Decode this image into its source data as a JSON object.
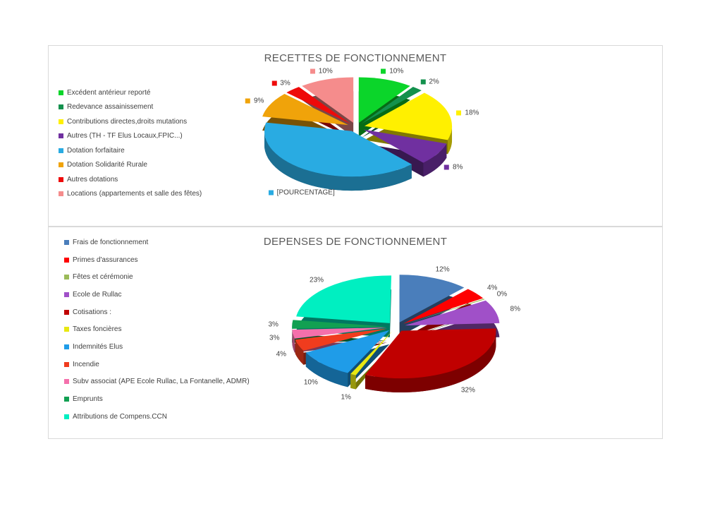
{
  "styles": {
    "background": "#FFFFFF",
    "panel_border": "#D9D9D9",
    "title_color": "#595959",
    "label_color": "#404040"
  },
  "chart_data": [
    {
      "type": "pie",
      "title": "RECETTES DE FONCTIONNEMENT",
      "effect": "3d-exploded",
      "legend_position": "left",
      "percent_labels_have_markers": true,
      "slices": [
        {
          "label": "Excédent antérieur reporté",
          "value": 10,
          "value_label": "10%",
          "color": "#0BD52A"
        },
        {
          "label": "Redevance assainissement",
          "value": 2,
          "value_label": "2%",
          "color": "#13914D"
        },
        {
          "label": "Contributions directes,droits mutations",
          "value": 18,
          "value_label": "18%",
          "color": "#FFF000"
        },
        {
          "label": "Autres (TH - TF Elus Locaux,FPIC...)",
          "value": 8,
          "value_label": "8%",
          "color": "#7030A0"
        },
        {
          "label": "Dotation forfaitaire",
          "value": 40,
          "value_label": "[POURCENTAGE]",
          "color": "#29ABE2"
        },
        {
          "label": "Dotation Solidarité Rurale",
          "value": 9,
          "value_label": "9%",
          "color": "#F0A30A"
        },
        {
          "label": "Autres dotations",
          "value": 3,
          "value_label": "3%",
          "color": "#EE0A0A"
        },
        {
          "label": "Locations (appartements et salle des fêtes)",
          "value": 10,
          "value_label": "10%",
          "color": "#F58C8C"
        }
      ]
    },
    {
      "type": "pie",
      "title": "DEPENSES DE FONCTIONNEMENT",
      "effect": "3d-exploded",
      "legend_position": "left",
      "percent_labels_have_markers": false,
      "slices": [
        {
          "label": "Frais de fonctionnement",
          "value": 12,
          "value_label": "12%",
          "color": "#4A7EBB"
        },
        {
          "label": "Primes d'assurances",
          "value": 4,
          "value_label": "4%",
          "color": "#FE0000"
        },
        {
          "label": "Fêtes et cérémonie",
          "value": 0,
          "value_label": "0%",
          "color": "#9BBB59"
        },
        {
          "label": "Ecole de Rullac",
          "value": 8,
          "value_label": "8%",
          "color": "#A050C8"
        },
        {
          "label": "Cotisations :",
          "value": 32,
          "value_label": "32%",
          "color": "#C00000"
        },
        {
          "label": "Taxes foncières",
          "value": 1,
          "value_label": "1%",
          "color": "#E8E812"
        },
        {
          "label": "Indemnités Elus",
          "value": 10,
          "value_label": "10%",
          "color": "#1F9CE8"
        },
        {
          "label": "Incendie",
          "value": 4,
          "value_label": "4%",
          "color": "#F03C1E"
        },
        {
          "label": "Subv associat (APE Ecole Rullac, La Fontanelle, ADMR)",
          "value": 3,
          "value_label": "3%",
          "color": "#F470AC"
        },
        {
          "label": "Emprunts",
          "value": 3,
          "value_label": "3%",
          "color": "#12A052"
        },
        {
          "label": "Attributions de Compens.CCN",
          "value": 23,
          "value_label": "23%",
          "color": "#00EFC1"
        }
      ]
    }
  ]
}
